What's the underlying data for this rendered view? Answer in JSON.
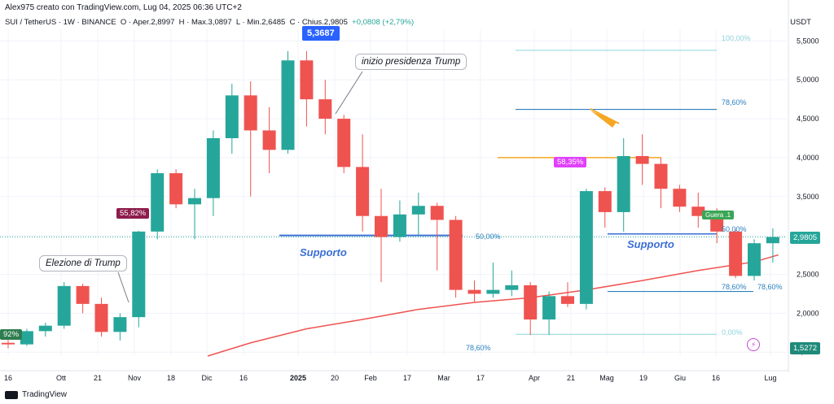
{
  "header": {
    "credit": "Alex975 creato con TradingView.com, Lug 04, 2025 06:36 UTC+2",
    "symbol": "SUI / TetherUS · 1W · BINANCE",
    "open": "O · Aper.2,8997",
    "high": "H · Max.3,0897",
    "low": "L · Min.2,6485",
    "close": "C · Chius.2,9805",
    "change": "+0,0808 (+2,79%)",
    "currency": "USDT"
  },
  "footer": {
    "brand": "TradingView"
  },
  "colors": {
    "up": "#26a69a",
    "down": "#ef5350",
    "ma": "#ef5350",
    "support": "#3b6fd4",
    "fib": "#2a7fbf",
    "orange": "#f5a623"
  },
  "annotations": {
    "election": "Elezione di Trump",
    "inauguration": "inizio presidenza Trump",
    "support_left": "Supporto",
    "support_right": "Supporto",
    "peak_tag": "5,3687",
    "pct_left": "55,82%",
    "pct_right": "58,35%",
    "pct_edge": "92%",
    "green_badge": "Guera .1",
    "price_last": "2,9805",
    "price_low": "1,5272",
    "fib_left_50": "50,00%",
    "fib_left_786": "78,60%",
    "fib_right_786_top": "78,60%",
    "fib_right_50": "50,00%",
    "fib_right_786_a": "78,60%",
    "fib_right_786_b": "78,60%",
    "fib_right_0": "0,00%",
    "fib_right_100": "100,00%"
  },
  "chart_data": {
    "type": "candlestick",
    "title": "SUI / TetherUS · 1W · BINANCE",
    "ylabel": "USDT",
    "ylim": [
      1.45,
      5.65
    ],
    "yticks": [
      "5,5000",
      "5,0000",
      "4,5000",
      "4,0000",
      "3,5000",
      "3,0000",
      "2,5000",
      "2,0000",
      "1,5000"
    ],
    "ytick_values": [
      5.5,
      5.0,
      4.5,
      4.0,
      3.5,
      3.0,
      2.5,
      2.0,
      1.5
    ],
    "xticks": [
      "16",
      "Ott",
      "21",
      "Nov",
      "18",
      "Dic",
      "16",
      "2025",
      "20",
      "Feb",
      "17",
      "Mar",
      "17",
      "Apr",
      "21",
      "Mag",
      "19",
      "Giu",
      "16",
      "Lug"
    ],
    "candles": [
      {
        "o": 1.62,
        "h": 1.7,
        "l": 1.55,
        "c": 1.6
      },
      {
        "o": 1.6,
        "h": 1.8,
        "l": 1.58,
        "c": 1.77
      },
      {
        "o": 1.77,
        "h": 1.88,
        "l": 1.7,
        "c": 1.84
      },
      {
        "o": 1.84,
        "h": 2.4,
        "l": 1.8,
        "c": 2.35
      },
      {
        "o": 2.35,
        "h": 2.38,
        "l": 2.0,
        "c": 2.12
      },
      {
        "o": 2.12,
        "h": 2.2,
        "l": 1.7,
        "c": 1.76
      },
      {
        "o": 1.76,
        "h": 2.0,
        "l": 1.65,
        "c": 1.95
      },
      {
        "o": 1.95,
        "h": 3.06,
        "l": 1.82,
        "c": 3.05
      },
      {
        "o": 3.05,
        "h": 3.85,
        "l": 2.95,
        "c": 3.8
      },
      {
        "o": 3.8,
        "h": 3.85,
        "l": 3.35,
        "c": 3.4
      },
      {
        "o": 3.4,
        "h": 3.6,
        "l": 2.95,
        "c": 3.48
      },
      {
        "o": 3.48,
        "h": 4.35,
        "l": 3.25,
        "c": 4.25
      },
      {
        "o": 4.25,
        "h": 4.95,
        "l": 4.05,
        "c": 4.8
      },
      {
        "o": 4.8,
        "h": 4.98,
        "l": 3.5,
        "c": 4.35
      },
      {
        "o": 4.35,
        "h": 4.65,
        "l": 3.8,
        "c": 4.1
      },
      {
        "o": 4.1,
        "h": 5.37,
        "l": 4.05,
        "c": 5.25
      },
      {
        "o": 5.25,
        "h": 5.37,
        "l": 4.4,
        "c": 4.75
      },
      {
        "o": 4.75,
        "h": 5.0,
        "l": 4.3,
        "c": 4.5
      },
      {
        "o": 4.5,
        "h": 4.55,
        "l": 3.8,
        "c": 3.88
      },
      {
        "o": 3.88,
        "h": 4.3,
        "l": 3.05,
        "c": 3.25
      },
      {
        "o": 3.25,
        "h": 3.6,
        "l": 2.4,
        "c": 2.98
      },
      {
        "o": 2.98,
        "h": 3.45,
        "l": 2.92,
        "c": 3.27
      },
      {
        "o": 3.27,
        "h": 3.55,
        "l": 3.0,
        "c": 3.38
      },
      {
        "o": 3.38,
        "h": 3.42,
        "l": 2.55,
        "c": 3.2
      },
      {
        "o": 3.2,
        "h": 3.25,
        "l": 2.2,
        "c": 2.3
      },
      {
        "o": 2.3,
        "h": 2.42,
        "l": 2.15,
        "c": 2.25
      },
      {
        "o": 2.25,
        "h": 2.65,
        "l": 2.2,
        "c": 2.3
      },
      {
        "o": 2.3,
        "h": 2.55,
        "l": 2.22,
        "c": 2.36
      },
      {
        "o": 2.36,
        "h": 2.4,
        "l": 1.72,
        "c": 1.92
      },
      {
        "o": 1.92,
        "h": 2.28,
        "l": 1.72,
        "c": 2.22
      },
      {
        "o": 2.22,
        "h": 2.4,
        "l": 2.08,
        "c": 2.12
      },
      {
        "o": 2.12,
        "h": 3.6,
        "l": 2.05,
        "c": 3.57
      },
      {
        "o": 3.57,
        "h": 3.62,
        "l": 3.1,
        "c": 3.3
      },
      {
        "o": 3.3,
        "h": 4.25,
        "l": 3.05,
        "c": 4.02
      },
      {
        "o": 4.02,
        "h": 4.3,
        "l": 3.65,
        "c": 3.92
      },
      {
        "o": 3.92,
        "h": 4.0,
        "l": 3.35,
        "c": 3.6
      },
      {
        "o": 3.6,
        "h": 3.65,
        "l": 3.3,
        "c": 3.37
      },
      {
        "o": 3.37,
        "h": 3.55,
        "l": 3.1,
        "c": 3.25
      },
      {
        "o": 3.25,
        "h": 3.35,
        "l": 2.9,
        "c": 3.05
      },
      {
        "o": 3.05,
        "h": 3.08,
        "l": 2.45,
        "c": 2.48
      },
      {
        "o": 2.48,
        "h": 2.95,
        "l": 2.42,
        "c": 2.9
      },
      {
        "o": 2.9,
        "h": 3.09,
        "l": 2.65,
        "c": 2.98
      }
    ],
    "moving_average": [
      {
        "i": 10.7,
        "v": 1.45
      },
      {
        "i": 13,
        "v": 1.62
      },
      {
        "i": 16,
        "v": 1.8
      },
      {
        "i": 19,
        "v": 1.92
      },
      {
        "i": 22,
        "v": 2.05
      },
      {
        "i": 25,
        "v": 2.14
      },
      {
        "i": 28,
        "v": 2.2
      },
      {
        "i": 31,
        "v": 2.3
      },
      {
        "i": 34,
        "v": 2.42
      },
      {
        "i": 37,
        "v": 2.55
      },
      {
        "i": 40,
        "v": 2.66
      },
      {
        "i": 41.3,
        "v": 2.75
      }
    ],
    "support_levels": [
      3.0,
      3.01
    ],
    "orange_level": 4.0,
    "fib_levels": {
      "100": 5.38,
      "78.6": 4.62,
      "50": 3.02,
      "78.6_low": 2.28,
      "0": 1.73
    }
  }
}
